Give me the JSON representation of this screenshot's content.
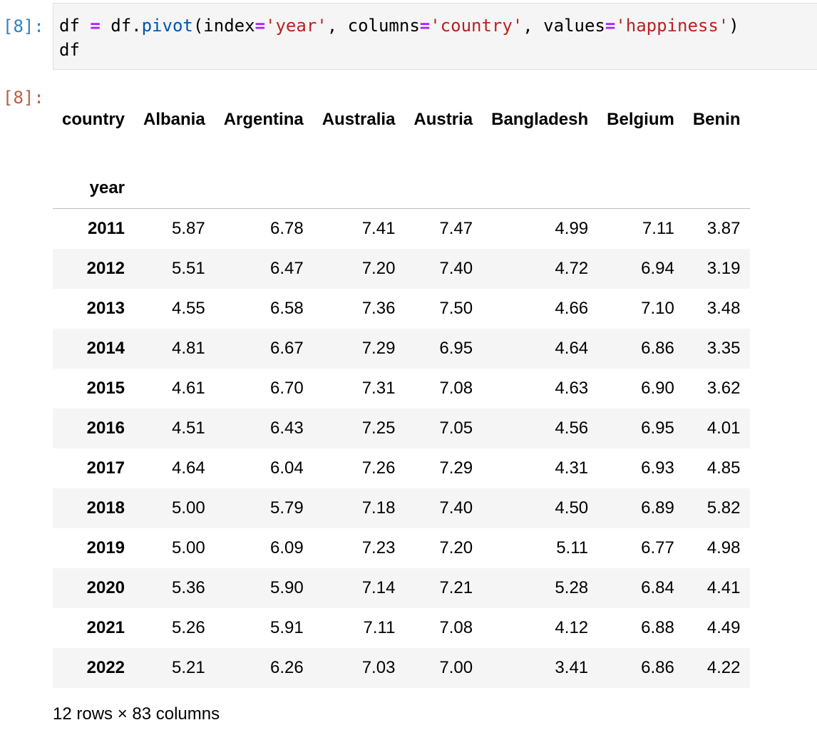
{
  "input_cell": {
    "prompt": "[8]:",
    "code_lines": [
      [
        {
          "t": "df "
        },
        {
          "t": "=",
          "c": "tok-op"
        },
        {
          "t": " df."
        },
        {
          "t": "pivot",
          "c": "tok-fn"
        },
        {
          "t": "(index"
        },
        {
          "t": "=",
          "c": "tok-op"
        },
        {
          "t": "'year'",
          "c": "tok-str"
        },
        {
          "t": ", columns"
        },
        {
          "t": "=",
          "c": "tok-op"
        },
        {
          "t": "'country'",
          "c": "tok-str"
        },
        {
          "t": ", values"
        },
        {
          "t": "=",
          "c": "tok-op"
        },
        {
          "t": "'happiness'",
          "c": "tok-str"
        },
        {
          "t": ")"
        }
      ],
      [
        {
          "t": "df"
        }
      ]
    ]
  },
  "output_cell": {
    "prompt": "[8]:",
    "columns_name": "country",
    "index_name": "year",
    "columns": [
      "Albania",
      "Argentina",
      "Australia",
      "Austria",
      "Bangladesh",
      "Belgium",
      "Benin"
    ],
    "rows": [
      {
        "index": "2011",
        "values": [
          "5.87",
          "6.78",
          "7.41",
          "7.47",
          "4.99",
          "7.11",
          "3.87"
        ]
      },
      {
        "index": "2012",
        "values": [
          "5.51",
          "6.47",
          "7.20",
          "7.40",
          "4.72",
          "6.94",
          "3.19"
        ]
      },
      {
        "index": "2013",
        "values": [
          "4.55",
          "6.58",
          "7.36",
          "7.50",
          "4.66",
          "7.10",
          "3.48"
        ]
      },
      {
        "index": "2014",
        "values": [
          "4.81",
          "6.67",
          "7.29",
          "6.95",
          "4.64",
          "6.86",
          "3.35"
        ]
      },
      {
        "index": "2015",
        "values": [
          "4.61",
          "6.70",
          "7.31",
          "7.08",
          "4.63",
          "6.90",
          "3.62"
        ]
      },
      {
        "index": "2016",
        "values": [
          "4.51",
          "6.43",
          "7.25",
          "7.05",
          "4.56",
          "6.95",
          "4.01"
        ]
      },
      {
        "index": "2017",
        "values": [
          "4.64",
          "6.04",
          "7.26",
          "7.29",
          "4.31",
          "6.93",
          "4.85"
        ]
      },
      {
        "index": "2018",
        "values": [
          "5.00",
          "5.79",
          "7.18",
          "7.40",
          "4.50",
          "6.89",
          "5.82"
        ]
      },
      {
        "index": "2019",
        "values": [
          "5.00",
          "6.09",
          "7.23",
          "7.20",
          "5.11",
          "6.77",
          "4.98"
        ]
      },
      {
        "index": "2020",
        "values": [
          "5.36",
          "5.90",
          "7.14",
          "7.21",
          "5.28",
          "6.84",
          "4.41"
        ]
      },
      {
        "index": "2021",
        "values": [
          "5.26",
          "5.91",
          "7.11",
          "7.08",
          "4.12",
          "6.88",
          "4.49"
        ]
      },
      {
        "index": "2022",
        "values": [
          "5.21",
          "6.26",
          "7.03",
          "7.00",
          "3.41",
          "6.86",
          "4.22"
        ]
      }
    ],
    "shape_text": "12 rows × 83 columns"
  },
  "colors": {
    "input_prompt": "#307fc1",
    "output_prompt": "#bf5b3d",
    "operator": "#aa22ff",
    "string": "#ba2121",
    "function": "#0055aa",
    "stripe": "#f5f5f5"
  }
}
